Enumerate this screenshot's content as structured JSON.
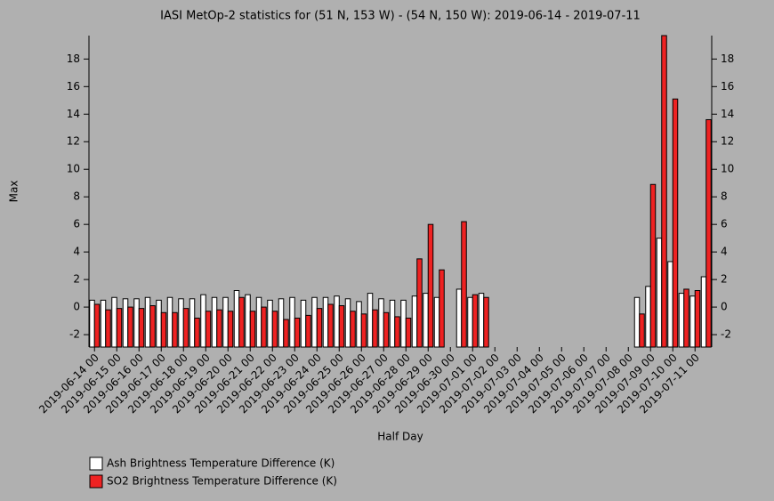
{
  "chart_data": {
    "type": "bar",
    "title": "IASI MetOp-2 statistics for (51 N, 153 W) - (54 N, 150 W): 2019-06-14 - 2019-07-11",
    "x_label": "Half Day",
    "y_label": "Max",
    "categories": [
      "2019-06-14 00",
      null,
      "2019-06-15 00",
      null,
      "2019-06-16 00",
      null,
      "2019-06-17 00",
      null,
      "2019-06-18 00",
      null,
      "2019-06-19 00",
      null,
      "2019-06-20 00",
      null,
      "2019-06-21 00",
      null,
      "2019-06-22 00",
      null,
      "2019-06-23 00",
      null,
      "2019-06-24 00",
      null,
      "2019-06-25 00",
      null,
      "2019-06-26 00",
      null,
      "2019-06-27 00",
      null,
      "2019-06-28 00",
      null,
      "2019-06-29 00",
      null,
      "2019-06-30 00",
      null,
      "2019-07-01 00",
      null,
      "2019-07-02 00",
      null,
      "2019-07-03 00",
      null,
      "2019-07-04 00",
      null,
      "2019-07-05 00",
      null,
      "2019-07-06 00",
      null,
      "2019-07-07 00",
      null,
      "2019-07-08 00",
      null,
      "2019-07-09 00",
      null,
      "2019-07-10 00",
      null,
      "2019-07-11 00",
      null
    ],
    "series": [
      {
        "name": "Ash Brightness Temperature Difference (K)",
        "color": "#ffffff",
        "values": [
          0.5,
          0.5,
          0.7,
          0.6,
          0.6,
          0.7,
          0.5,
          0.7,
          0.6,
          0.6,
          0.9,
          0.7,
          0.7,
          1.2,
          0.9,
          0.7,
          0.5,
          0.6,
          0.7,
          0.5,
          0.7,
          0.7,
          0.8,
          0.6,
          0.4,
          1.0,
          0.6,
          0.5,
          0.5,
          0.8,
          1.0,
          0.7,
          null,
          1.3,
          0.7,
          1.0,
          null,
          null,
          null,
          null,
          null,
          null,
          null,
          null,
          null,
          null,
          null,
          null,
          null,
          0.7,
          1.5,
          5.0,
          3.3,
          1.0,
          0.8,
          2.2
        ]
      },
      {
        "name": "SO2 Brightness Temperature Difference (K)",
        "color": "#ee2222",
        "values": [
          0.2,
          -0.2,
          -0.1,
          0.0,
          -0.1,
          0.1,
          -0.4,
          -0.4,
          -0.1,
          -0.8,
          -0.3,
          -0.2,
          -0.3,
          0.7,
          -0.3,
          0.0,
          -0.3,
          -0.9,
          -0.8,
          -0.6,
          -0.1,
          0.2,
          0.1,
          -0.3,
          -0.5,
          -0.2,
          -0.4,
          -0.7,
          -0.8,
          3.5,
          6.0,
          2.7,
          null,
          6.2,
          0.9,
          0.7,
          null,
          null,
          null,
          null,
          null,
          null,
          null,
          null,
          null,
          null,
          null,
          null,
          null,
          -0.5,
          8.9,
          19.7,
          15.1,
          1.3,
          1.2,
          13.6
        ]
      }
    ],
    "ylim": [
      -2.9,
      19.7
    ],
    "yticks": [
      -2,
      0,
      2,
      4,
      6,
      8,
      10,
      12,
      14,
      16,
      18
    ]
  }
}
